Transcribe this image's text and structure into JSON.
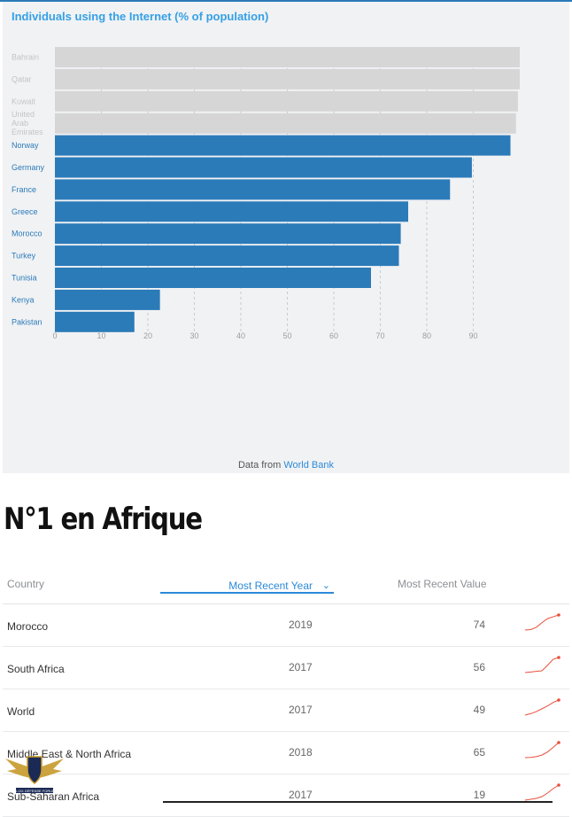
{
  "chart_data": {
    "type": "bar",
    "orientation": "horizontal",
    "title": "Individuals using the Internet (% of population)",
    "categories": [
      "Bahrain",
      "Qatar",
      "Kuwait",
      "United Arab Emirates",
      "Norway",
      "Germany",
      "France",
      "Greece",
      "Morocco",
      "Turkey",
      "Tunisia",
      "Kenya",
      "Pakistan"
    ],
    "category_lines": [
      [
        "Bahrain"
      ],
      [
        "Qatar"
      ],
      [
        "Kuwait"
      ],
      [
        "United",
        "Arab",
        "Emirates"
      ],
      [
        "Norway"
      ],
      [
        "Germany"
      ],
      [
        "France"
      ],
      [
        "Greece"
      ],
      [
        "Morocco"
      ],
      [
        "Turkey"
      ],
      [
        "Tunisia"
      ],
      [
        "Kenya"
      ],
      [
        "Pakistan"
      ]
    ],
    "values": [
      100,
      100,
      99.6,
      99.2,
      98,
      89.7,
      85,
      76,
      74.4,
      74,
      68,
      22.6,
      17.1
    ],
    "highlighted": [
      false,
      false,
      false,
      false,
      true,
      true,
      true,
      true,
      true,
      true,
      true,
      true,
      true
    ],
    "xticks": [
      0,
      10,
      20,
      30,
      40,
      50,
      60,
      70,
      80,
      90
    ],
    "xlim": [
      0,
      100
    ],
    "grid": "vertical dashed",
    "colors": {
      "highlight": "#2b7bb9",
      "muted": "#d6d6d6",
      "label_highlight": "#2b7bb9",
      "label_muted": "#c4c4c4"
    }
  },
  "source": {
    "prefix": "Data from",
    "link": "World Bank"
  },
  "heading": "N°1 en Afrique",
  "table": {
    "headers": {
      "country": "Country",
      "year": "Most Recent Year",
      "value": "Most Recent Value"
    },
    "sort_icon": "chevron-down-icon",
    "rows": [
      {
        "country": "Morocco",
        "year": "2019",
        "value": "74",
        "trend": [
          8,
          10,
          20,
          40,
          58,
          66,
          74
        ]
      },
      {
        "country": "South Africa",
        "year": "2017",
        "value": "56",
        "trend": [
          6,
          8,
          10,
          12,
          30,
          50,
          56
        ]
      },
      {
        "country": "World",
        "year": "2017",
        "value": "49",
        "trend": [
          6,
          10,
          16,
          24,
          32,
          42,
          49
        ]
      },
      {
        "country": "Middle East & North Africa",
        "year": "2018",
        "value": "65",
        "trend": [
          6,
          7,
          10,
          16,
          28,
          46,
          65
        ]
      },
      {
        "country": "Sub-Saharan Africa",
        "year": "2017",
        "value": "19",
        "trend": [
          2,
          3,
          4,
          6,
          10,
          15,
          19
        ]
      }
    ],
    "spark_color": "#e8503a"
  },
  "logo": {
    "text": "BLOG DÉFENSE FORUM",
    "icon": "eagle-shield-icon"
  }
}
